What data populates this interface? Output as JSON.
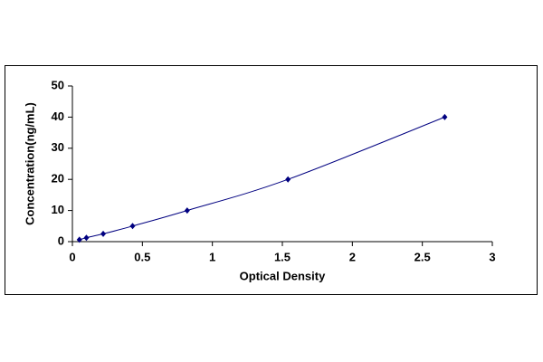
{
  "chart_data": {
    "type": "scatter",
    "line": true,
    "color": "#000080",
    "x_label": "Optical Density",
    "y_label": "Concentration(ng/mL)",
    "x": [
      0.05,
      0.1,
      0.22,
      0.43,
      0.82,
      1.54,
      2.66
    ],
    "values": [
      0.625,
      1.25,
      2.5,
      5,
      10,
      20,
      40
    ],
    "xlim": [
      0,
      3
    ],
    "xticks": [
      0,
      0.5,
      1,
      1.5,
      2,
      2.5,
      3
    ],
    "ylim": [
      0,
      50
    ],
    "yticks": [
      0,
      10,
      20,
      30,
      40,
      50
    ]
  }
}
